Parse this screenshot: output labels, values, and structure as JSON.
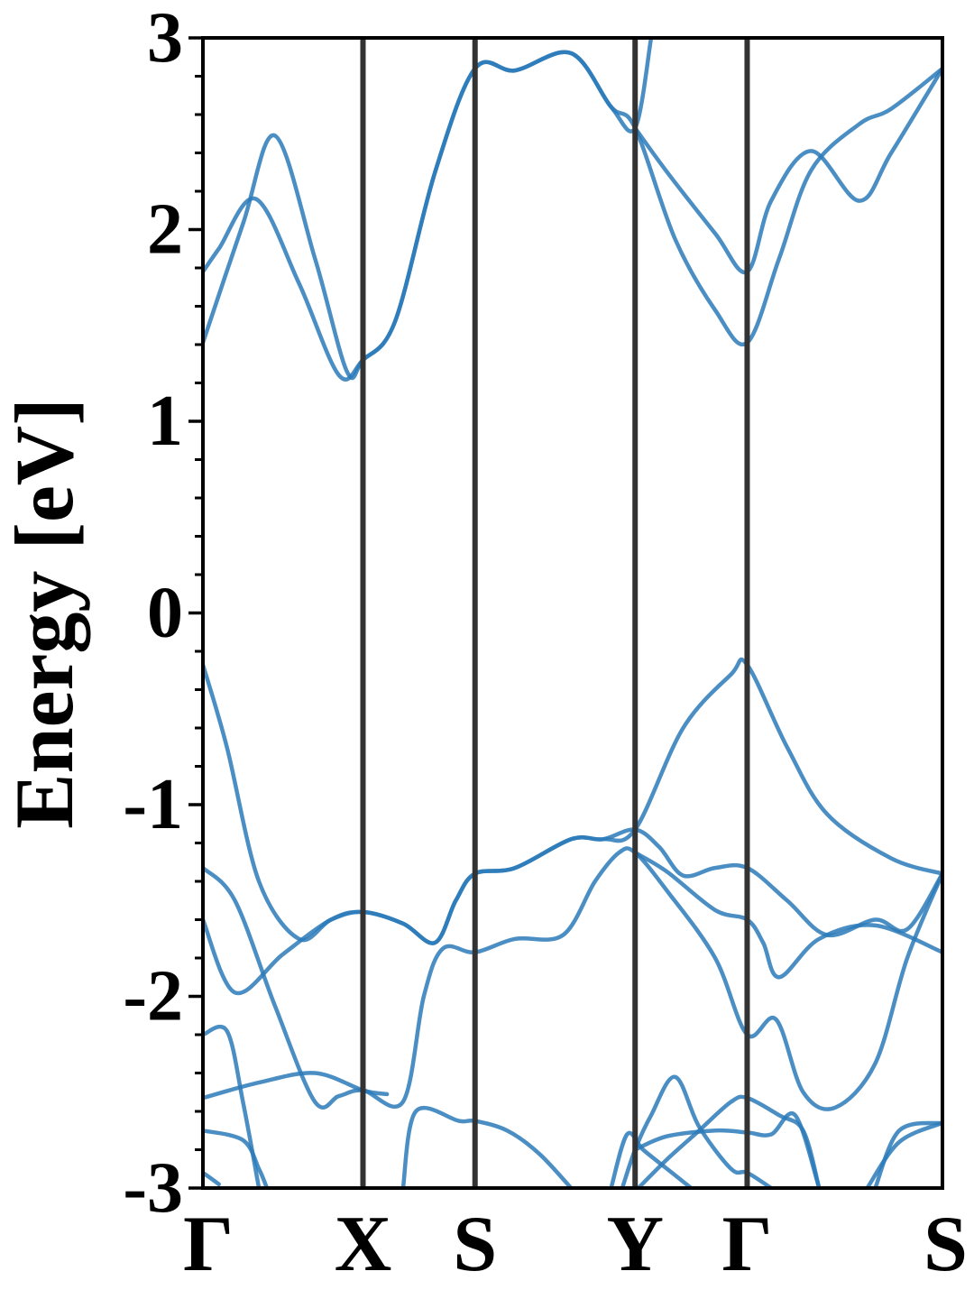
{
  "chart_data": {
    "type": "line",
    "title": "",
    "xlabel": "",
    "ylabel": "Energy [eV]",
    "ylim": [
      -3,
      3
    ],
    "y_major_ticks": [
      -3,
      -2,
      -1,
      0,
      1,
      2,
      3
    ],
    "y_minor_step": 0.2,
    "grid": false,
    "legend": "none",
    "k_path": [
      {
        "label": "Γ",
        "position": 0.0
      },
      {
        "label": "X",
        "position": 1.0
      },
      {
        "label": "S",
        "position": 1.7
      },
      {
        "label": "Y",
        "position": 2.7
      },
      {
        "label": "Γ",
        "position": 3.4
      },
      {
        "label": "S",
        "position": 4.62
      }
    ],
    "line_color": "#2a7ab9",
    "vline_color": "#333333",
    "bands": [
      {
        "points": [
          [
            0,
            1.41
          ],
          [
            0.25,
            2.03
          ],
          [
            0.45,
            2.49
          ],
          [
            0.7,
            1.85
          ],
          [
            0.9,
            1.26
          ],
          [
            1.0,
            1.32
          ],
          [
            1.2,
            1.52
          ],
          [
            1.45,
            2.3
          ],
          [
            1.7,
            2.84
          ],
          [
            1.95,
            2.83
          ],
          [
            2.3,
            2.92
          ],
          [
            2.55,
            2.64
          ],
          [
            2.7,
            2.53
          ],
          [
            2.95,
            1.95
          ],
          [
            3.2,
            1.58
          ],
          [
            3.4,
            1.41
          ],
          [
            3.6,
            1.85
          ],
          [
            3.8,
            2.31
          ],
          [
            4.1,
            2.55
          ],
          [
            4.3,
            2.63
          ],
          [
            4.62,
            2.84
          ]
        ]
      },
      {
        "points": [
          [
            0,
            1.78
          ],
          [
            0.1,
            1.9
          ],
          [
            0.33,
            2.16
          ],
          [
            0.6,
            1.72
          ],
          [
            0.85,
            1.24
          ],
          [
            1.0,
            1.32
          ],
          [
            1.2,
            1.52
          ],
          [
            1.45,
            2.3
          ],
          [
            1.7,
            2.84
          ],
          [
            1.95,
            2.83
          ],
          [
            2.3,
            2.92
          ],
          [
            2.55,
            2.64
          ],
          [
            2.7,
            2.53
          ],
          [
            2.8,
            3.0
          ]
        ]
      },
      {
        "points": [
          [
            2.7,
            2.53
          ],
          [
            2.9,
            2.3
          ],
          [
            3.2,
            1.98
          ],
          [
            3.4,
            1.78
          ],
          [
            3.55,
            2.15
          ],
          [
            3.8,
            2.41
          ],
          [
            4.1,
            2.15
          ],
          [
            4.3,
            2.4
          ],
          [
            4.62,
            2.84
          ]
        ]
      },
      {
        "points": [
          [
            0,
            -0.27
          ],
          [
            0.15,
            -0.7
          ],
          [
            0.35,
            -1.4
          ],
          [
            0.6,
            -1.7
          ],
          [
            0.8,
            -1.6
          ],
          [
            1.0,
            -1.56
          ],
          [
            1.25,
            -1.62
          ],
          [
            1.45,
            -1.72
          ],
          [
            1.58,
            -1.5
          ],
          [
            1.7,
            -1.36
          ],
          [
            1.95,
            -1.33
          ],
          [
            2.3,
            -1.18
          ],
          [
            2.5,
            -1.18
          ],
          [
            2.7,
            -1.13
          ],
          [
            3.0,
            -0.6
          ],
          [
            3.3,
            -0.32
          ],
          [
            3.4,
            -0.27
          ],
          [
            3.65,
            -0.7
          ],
          [
            3.9,
            -1.05
          ],
          [
            4.3,
            -1.28
          ],
          [
            4.62,
            -1.36
          ]
        ]
      },
      {
        "points": [
          [
            0,
            -1.33
          ],
          [
            0.2,
            -1.5
          ],
          [
            0.45,
            -2.05
          ],
          [
            0.7,
            -2.55
          ],
          [
            0.85,
            -2.52
          ],
          [
            1.0,
            -2.49
          ],
          [
            1.25,
            -2.55
          ],
          [
            1.38,
            -2.0
          ],
          [
            1.5,
            -1.75
          ],
          [
            1.7,
            -1.77
          ],
          [
            1.95,
            -1.7
          ],
          [
            2.25,
            -1.68
          ],
          [
            2.45,
            -1.4
          ],
          [
            2.6,
            -1.25
          ],
          [
            2.7,
            -1.25
          ],
          [
            2.9,
            -1.45
          ],
          [
            3.2,
            -1.8
          ],
          [
            3.4,
            -2.2
          ],
          [
            3.58,
            -2.12
          ],
          [
            3.75,
            -2.5
          ],
          [
            3.95,
            -2.58
          ],
          [
            4.2,
            -2.35
          ],
          [
            4.4,
            -1.8
          ],
          [
            4.62,
            -1.36
          ]
        ]
      },
      {
        "points": [
          [
            0,
            -1.6
          ],
          [
            0.2,
            -1.98
          ],
          [
            0.5,
            -1.78
          ],
          [
            0.8,
            -1.6
          ],
          [
            1.0,
            -1.56
          ],
          [
            1.25,
            -1.62
          ],
          [
            1.45,
            -1.72
          ],
          [
            1.58,
            -1.5
          ],
          [
            1.7,
            -1.36
          ],
          [
            1.95,
            -1.33
          ],
          [
            2.3,
            -1.18
          ],
          [
            2.5,
            -1.18
          ],
          [
            2.7,
            -1.13
          ],
          [
            2.85,
            -1.22
          ],
          [
            3.0,
            -1.37
          ],
          [
            3.2,
            -1.33
          ],
          [
            3.4,
            -1.33
          ],
          [
            3.65,
            -1.5
          ],
          [
            3.9,
            -1.68
          ],
          [
            4.2,
            -1.6
          ],
          [
            4.4,
            -1.65
          ],
          [
            4.62,
            -1.36
          ]
        ]
      },
      {
        "points": [
          [
            2.7,
            -1.25
          ],
          [
            2.9,
            -1.35
          ],
          [
            3.2,
            -1.55
          ],
          [
            3.4,
            -1.6
          ],
          [
            3.5,
            -1.72
          ],
          [
            3.6,
            -1.9
          ],
          [
            3.85,
            -1.7
          ],
          [
            4.2,
            -1.63
          ],
          [
            4.62,
            -1.77
          ]
        ]
      },
      {
        "points": [
          [
            0,
            -2.2
          ],
          [
            0.15,
            -2.18
          ],
          [
            0.25,
            -2.55
          ],
          [
            0.35,
            -3.0
          ]
        ]
      },
      {
        "points": [
          [
            0,
            -2.53
          ],
          [
            0.35,
            -2.45
          ],
          [
            0.7,
            -2.4
          ],
          [
            1.0,
            -2.49
          ],
          [
            1.15,
            -2.51
          ]
        ]
      },
      {
        "points": [
          [
            0,
            -2.7
          ],
          [
            0.25,
            -2.75
          ],
          [
            0.35,
            -2.9
          ],
          [
            0.4,
            -3.0
          ]
        ]
      },
      {
        "points": [
          [
            0,
            -2.92
          ],
          [
            0.1,
            -2.98
          ]
        ]
      },
      {
        "points": [
          [
            1.25,
            -3.0
          ],
          [
            1.33,
            -2.6
          ],
          [
            1.6,
            -2.65
          ],
          [
            1.7,
            -2.65
          ],
          [
            1.9,
            -2.7
          ],
          [
            2.1,
            -2.82
          ],
          [
            2.3,
            -3.0
          ]
        ]
      },
      {
        "points": [
          [
            2.55,
            -3.0
          ],
          [
            2.65,
            -2.72
          ],
          [
            2.75,
            -2.8
          ],
          [
            2.9,
            -2.9
          ],
          [
            3.05,
            -3.0
          ]
        ]
      },
      {
        "points": [
          [
            2.62,
            -3.0
          ],
          [
            2.7,
            -2.8
          ],
          [
            2.8,
            -2.62
          ],
          [
            2.95,
            -2.42
          ],
          [
            3.1,
            -2.68
          ],
          [
            3.3,
            -2.9
          ],
          [
            3.4,
            -2.92
          ],
          [
            3.55,
            -3.0
          ]
        ]
      },
      {
        "points": [
          [
            2.7,
            -2.8
          ],
          [
            2.9,
            -2.73
          ],
          [
            3.2,
            -2.7
          ],
          [
            3.4,
            -2.71
          ],
          [
            3.55,
            -2.72
          ],
          [
            3.7,
            -2.62
          ],
          [
            3.85,
            -3.0
          ]
        ]
      },
      {
        "points": [
          [
            2.72,
            -3.0
          ],
          [
            2.9,
            -2.85
          ],
          [
            3.1,
            -2.7
          ],
          [
            3.3,
            -2.55
          ],
          [
            3.4,
            -2.53
          ],
          [
            3.6,
            -2.62
          ],
          [
            3.75,
            -2.7
          ],
          [
            3.85,
            -3.0
          ]
        ]
      },
      {
        "points": [
          [
            4.15,
            -3.0
          ],
          [
            4.35,
            -2.76
          ],
          [
            4.62,
            -2.66
          ]
        ]
      },
      {
        "points": [
          [
            4.2,
            -3.0
          ],
          [
            4.35,
            -2.7
          ],
          [
            4.62,
            -2.66
          ]
        ]
      }
    ]
  }
}
